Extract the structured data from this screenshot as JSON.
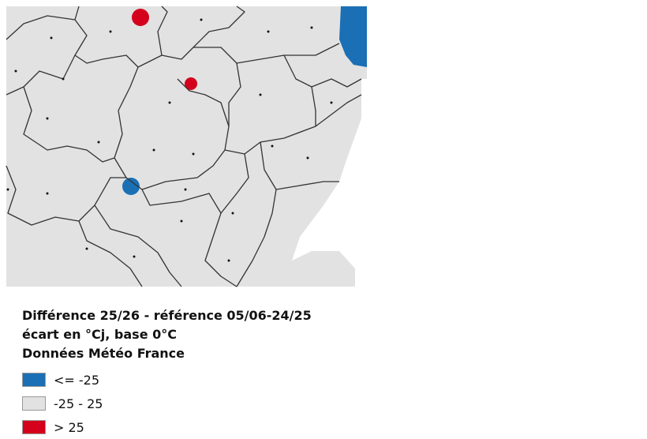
{
  "legend": {
    "title_lines": [
      "Différence 25/26 - référence 05/06-24/25",
      "écart en °Cj, base 0°C",
      "Données Météo France"
    ],
    "items": [
      {
        "label": "<= -25",
        "color": "#1a6fb5"
      },
      {
        "label": "-25 - 25",
        "color": "#e2e2e2"
      },
      {
        "label": "> 25",
        "color": "#d4001c"
      }
    ]
  }
}
